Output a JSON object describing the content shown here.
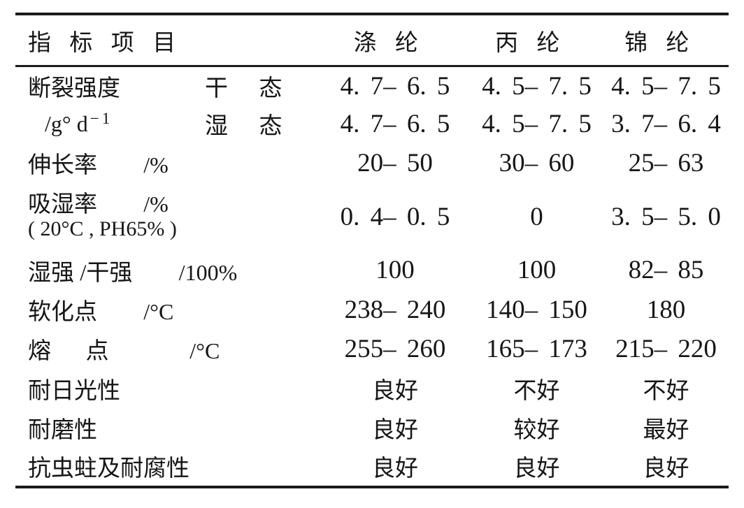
{
  "table": {
    "header": {
      "col_label": "指标项目",
      "columns": [
        "涤纶",
        "丙纶",
        "锦纶"
      ]
    },
    "break_strength": {
      "label": "断裂强度",
      "unit_base": "/g° d",
      "unit_sup": "−1",
      "dry": {
        "sub_label": "干态",
        "values": [
          "4. 7– 6. 5",
          "4. 5– 7. 5",
          "4. 5– 7. 5"
        ]
      },
      "wet": {
        "sub_label": "湿态",
        "values": [
          "4. 7– 6. 5",
          "4. 5– 7. 5",
          "3. 7– 6. 4"
        ]
      }
    },
    "rows": [
      {
        "label": "伸长率",
        "unit": "/%",
        "values": [
          "20– 50",
          "30– 60",
          "25– 63"
        ]
      },
      {
        "label": "吸湿率",
        "unit": "/%",
        "note": "( 20°C , PH65% )",
        "values": [
          "0. 4– 0. 5",
          "0",
          "3. 5– 5. 0"
        ]
      },
      {
        "label": "湿强 /干强",
        "unit": "/100%",
        "values": [
          "100",
          "100",
          "82– 85"
        ]
      },
      {
        "label": "软化点",
        "unit": "/°C",
        "values": [
          "238– 240",
          "140– 150",
          "180"
        ]
      },
      {
        "label": "熔点",
        "unit": "/°C",
        "values": [
          "255– 260",
          "165– 173",
          "215– 220"
        ]
      },
      {
        "label": "耐日光性",
        "unit": "",
        "values": [
          "良好",
          "不好",
          "不好"
        ]
      },
      {
        "label": "耐磨性",
        "unit": "",
        "values": [
          "良好",
          "较好",
          "最好"
        ]
      },
      {
        "label": "抗虫蛀及耐腐性",
        "unit": "",
        "values": [
          "良好",
          "良好",
          "良好"
        ]
      }
    ]
  }
}
